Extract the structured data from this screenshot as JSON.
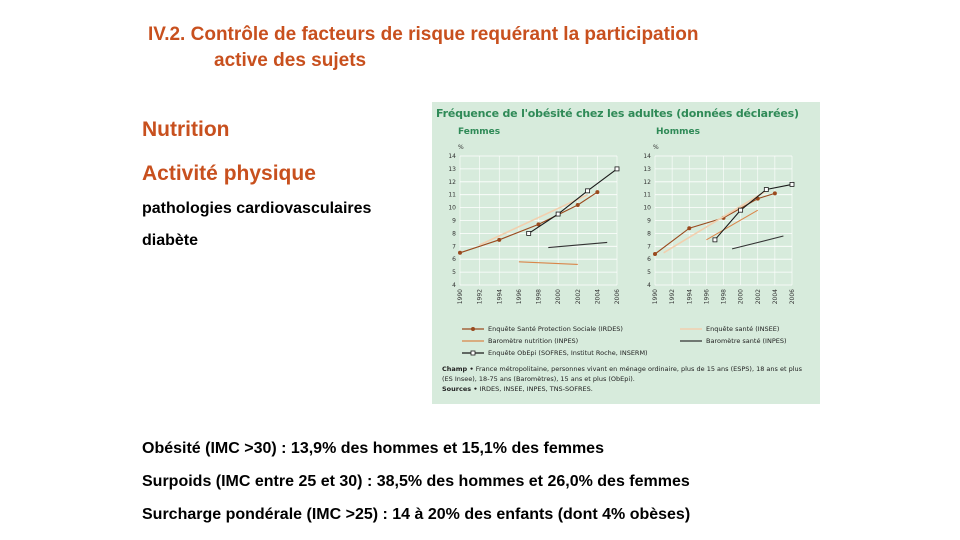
{
  "slide": {
    "title_line1": "IV.2. Contrôle de facteurs de risque requérant la participation",
    "title_line2": "active des sujets",
    "keyword1": "Nutrition",
    "keyword2": "Activité physique",
    "sub1": "pathologies cardiovasculaires",
    "sub2": "diabète",
    "fact1": "Obésité (IMC >30) : 13,9% des hommes et 15,1% des femmes",
    "fact2": "Surpoids (IMC entre 25 et 30) : 38,5% des hommes et 26,0% des femmes",
    "fact3": "Surcharge pondérale (IMC >25) : 14 à 20% des enfants (dont 4% obèses)"
  },
  "colors": {
    "accent": "#c8501e",
    "chart_green": "#2f8a57",
    "panel_bg": "#d7ebdc"
  },
  "figure": {
    "title": "Fréquence de l'obésité chez les adultes (données déclarées)",
    "champ_label": "Champ •",
    "champ_text": "France métropolitaine, personnes vivant en ménage ordinaire, plus de 15 ans (ESPS), 18 ans et plus (ES Insee), 18-75 ans (Baromètres), 15 ans et plus (ObEpi).",
    "sources_label": "Sources •",
    "sources_text": "IRDES, INSEE, INPES, TNS-SOFRES."
  },
  "chart_data": [
    {
      "type": "line",
      "title": "Femmes",
      "ylabel": "%",
      "ylim": [
        4,
        14
      ],
      "yticks": [
        4,
        5,
        6,
        7,
        8,
        9,
        10,
        11,
        12,
        13,
        14
      ],
      "xticks": [
        1990,
        1992,
        1994,
        1996,
        1998,
        2000,
        2002,
        2004,
        2006
      ],
      "series": [
        {
          "name": "Enquête Santé Protection Sociale (IRDES)",
          "color": "#9a4a1e",
          "marker": "dot",
          "x": [
            1990,
            1994,
            1998,
            2002,
            2004
          ],
          "y": [
            6.5,
            7.5,
            8.7,
            10.2,
            11.2
          ]
        },
        {
          "name": "Enquête santé (INSEE)",
          "color": "#f2cfae",
          "marker": "none",
          "x": [
            1992,
            2003
          ],
          "y": [
            7.1,
            11.0
          ]
        },
        {
          "name": "Baromètre nutrition (INPES)",
          "color": "#d9864a",
          "marker": "none",
          "x": [
            1996,
            2002
          ],
          "y": [
            5.8,
            5.6
          ]
        },
        {
          "name": "Baromètre santé (INPES)",
          "color": "#333333",
          "marker": "none",
          "x": [
            1999,
            2005
          ],
          "y": [
            6.9,
            7.3
          ]
        },
        {
          "name": "Enquête ObEpi (SOFRES, Institut Roche, INSERM)",
          "color": "#1a1a1a",
          "marker": "square",
          "x": [
            1997,
            2000,
            2003,
            2006
          ],
          "y": [
            8.0,
            9.5,
            11.3,
            13.0
          ]
        }
      ]
    },
    {
      "type": "line",
      "title": "Hommes",
      "ylabel": "%",
      "ylim": [
        4,
        14
      ],
      "yticks": [
        4,
        5,
        6,
        7,
        8,
        9,
        10,
        11,
        12,
        13,
        14
      ],
      "xticks": [
        1990,
        1992,
        1994,
        1996,
        1998,
        2000,
        2002,
        2004,
        2006
      ],
      "series": [
        {
          "name": "Enquête Santé Protection Sociale (IRDES)",
          "color": "#9a4a1e",
          "marker": "dot",
          "x": [
            1990,
            1994,
            1998,
            2002,
            2004
          ],
          "y": [
            6.4,
            8.4,
            9.2,
            10.7,
            11.1
          ]
        },
        {
          "name": "Enquête santé (INSEE)",
          "color": "#f2cfae",
          "marker": "none",
          "x": [
            1991,
            2003
          ],
          "y": [
            6.5,
            11.3
          ]
        },
        {
          "name": "Baromètre nutrition (INPES)",
          "color": "#d9864a",
          "marker": "none",
          "x": [
            1996,
            2002
          ],
          "y": [
            7.5,
            9.8
          ]
        },
        {
          "name": "Baromètre santé (INPES)",
          "color": "#333333",
          "marker": "none",
          "x": [
            1999,
            2005
          ],
          "y": [
            6.8,
            7.8
          ]
        },
        {
          "name": "Enquête ObEpi (SOFRES, Institut Roche, INSERM)",
          "color": "#1a1a1a",
          "marker": "square",
          "x": [
            1997,
            2000,
            2003,
            2006
          ],
          "y": [
            7.5,
            9.8,
            11.4,
            11.8
          ]
        }
      ]
    }
  ]
}
